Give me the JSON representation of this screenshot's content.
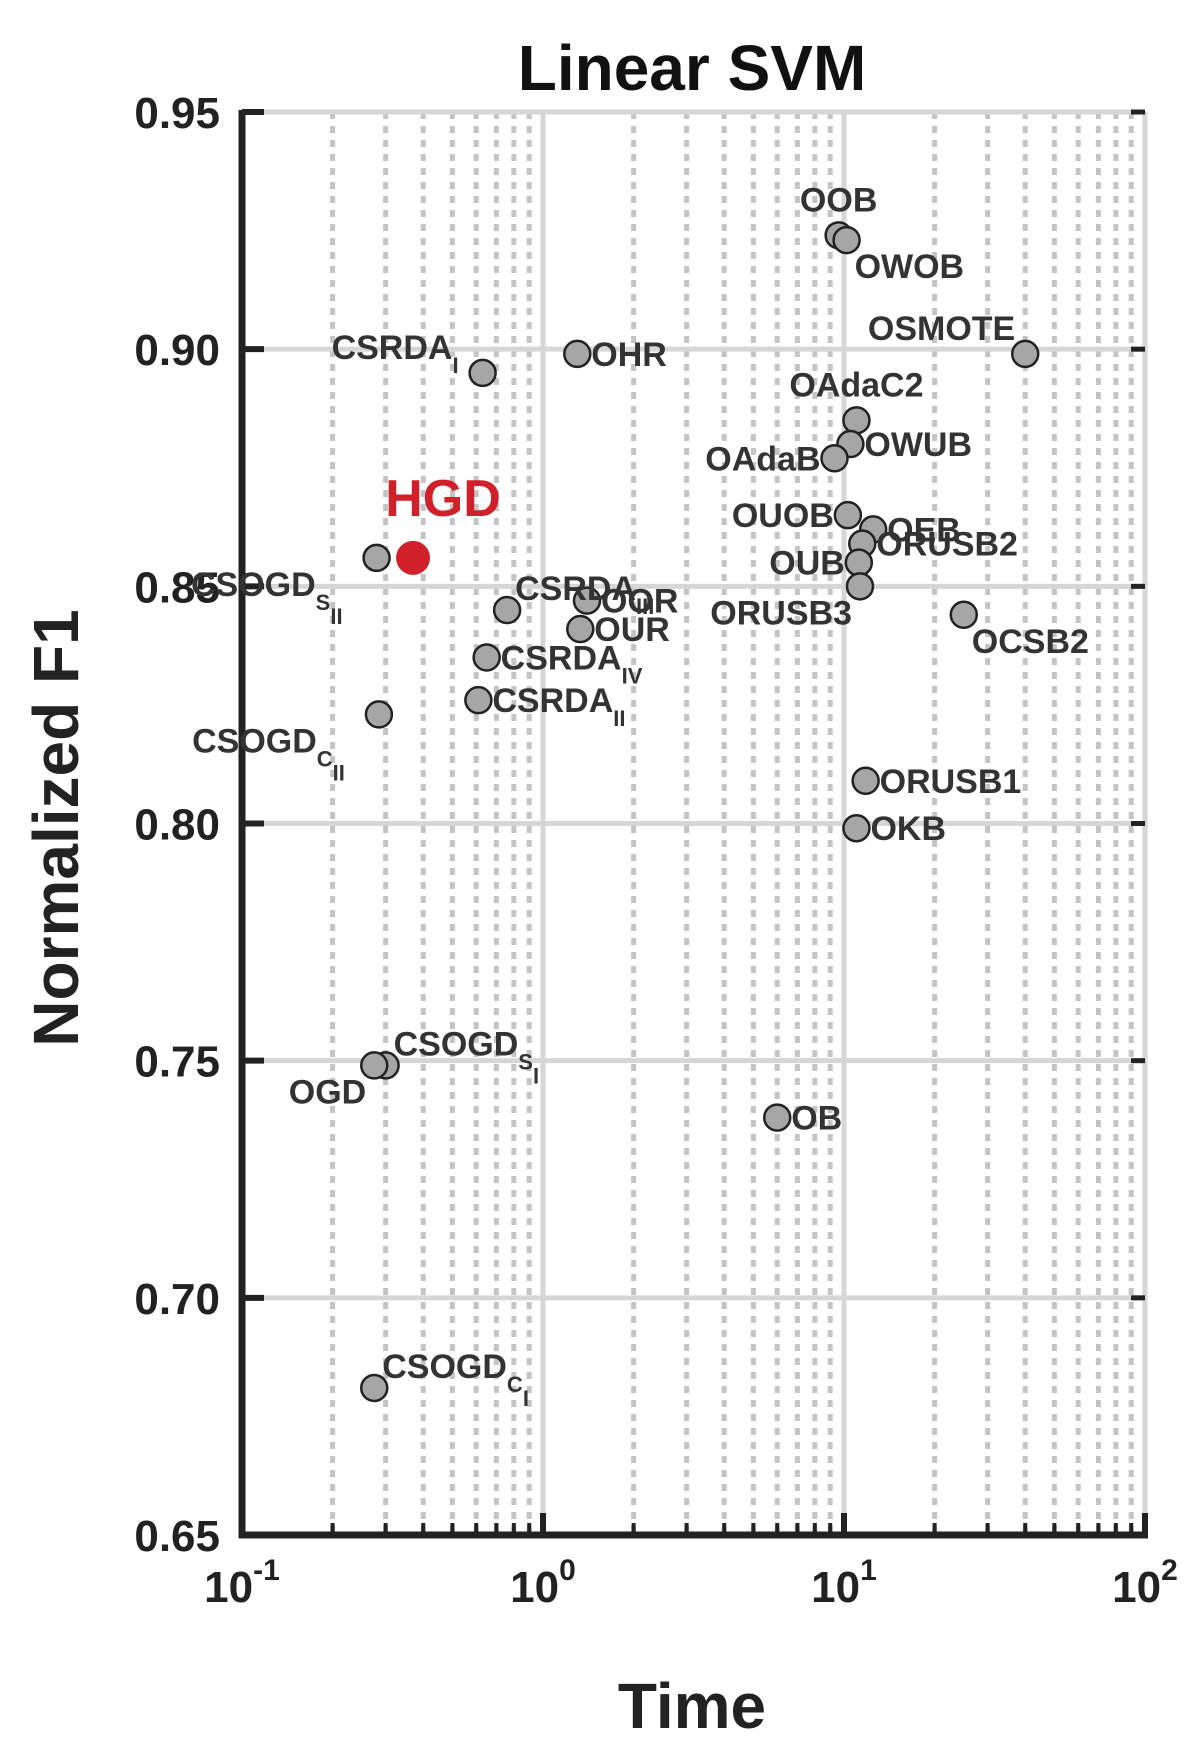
{
  "chart_data": {
    "type": "scatter",
    "title": "Linear SVM",
    "xlabel": "Time",
    "ylabel": "Normalized F1",
    "xscale": "log",
    "xlim": [
      0.1,
      100
    ],
    "ylim": [
      0.65,
      0.95
    ],
    "grid": true,
    "minor_grid": true,
    "yticks": [
      "0.65",
      "0.70",
      "0.75",
      "0.80",
      "0.85",
      "0.90",
      "0.95"
    ],
    "xticks": [
      {
        "base": "10",
        "exp": "-1"
      },
      {
        "base": "10",
        "exp": "0"
      },
      {
        "base": "10",
        "exp": "1"
      },
      {
        "base": "10",
        "exp": "2"
      }
    ],
    "highlight_color": "#d0202a",
    "marker_color": "#a6a6a6",
    "points": [
      {
        "label": "HGD",
        "sub": "",
        "x": 0.37,
        "y": 0.856,
        "highlight": true,
        "lp": "above"
      },
      {
        "label": "OOB",
        "sub": "",
        "x": 9.6,
        "y": 0.924,
        "lp": "above"
      },
      {
        "label": "OWOB",
        "sub": "",
        "x": 10.2,
        "y": 0.923,
        "lp": "below-right"
      },
      {
        "label": "OSMOTE",
        "sub": "",
        "x": 40.0,
        "y": 0.899,
        "lp": "above-left"
      },
      {
        "label": "CSRDA",
        "sub": "I",
        "x": 0.63,
        "y": 0.895,
        "lp": "above-left"
      },
      {
        "label": "OHR",
        "sub": "",
        "x": 1.3,
        "y": 0.899,
        "lp": "right"
      },
      {
        "label": "OAdaC2",
        "sub": "",
        "x": 11.0,
        "y": 0.885,
        "lp": "above"
      },
      {
        "label": "OWUB",
        "sub": "",
        "x": 10.5,
        "y": 0.88,
        "lp": "right"
      },
      {
        "label": "OAdaB",
        "sub": "",
        "x": 9.3,
        "y": 0.877,
        "lp": "left"
      },
      {
        "label": "OUOB",
        "sub": "",
        "x": 10.3,
        "y": 0.865,
        "lp": "left"
      },
      {
        "label": "OEB",
        "sub": "",
        "x": 12.5,
        "y": 0.862,
        "lp": "right"
      },
      {
        "label": "ORUSB2",
        "sub": "",
        "x": 11.5,
        "y": 0.859,
        "lp": "right"
      },
      {
        "label": "OUB",
        "sub": "",
        "x": 11.2,
        "y": 0.855,
        "lp": "left"
      },
      {
        "label": "ORUSB3",
        "sub": "",
        "x": 11.3,
        "y": 0.85,
        "lp": "below-left"
      },
      {
        "label": "OCSB2",
        "sub": "",
        "x": 25.0,
        "y": 0.844,
        "lp": "below-right"
      },
      {
        "label": "CSOGD",
        "sub": "S_II",
        "x": 0.28,
        "y": 0.856,
        "lp": "below-left"
      },
      {
        "label": "CSRDA",
        "sub": "III",
        "x": 0.76,
        "y": 0.845,
        "lp": "above-right"
      },
      {
        "label": "OOR",
        "sub": "",
        "x": 1.4,
        "y": 0.847,
        "lp": "right"
      },
      {
        "label": "OUR",
        "sub": "",
        "x": 1.33,
        "y": 0.841,
        "lp": "right"
      },
      {
        "label": "CSRDA",
        "sub": "IV",
        "x": 0.65,
        "y": 0.835,
        "lp": "right"
      },
      {
        "label": "CSRDA",
        "sub": "II",
        "x": 0.61,
        "y": 0.826,
        "lp": "right"
      },
      {
        "label": "CSOGD",
        "sub": "C_II",
        "x": 0.285,
        "y": 0.823,
        "lp": "below-left"
      },
      {
        "label": "ORUSB1",
        "sub": "",
        "x": 11.8,
        "y": 0.809,
        "lp": "right"
      },
      {
        "label": "OKB",
        "sub": "",
        "x": 11.0,
        "y": 0.799,
        "lp": "right"
      },
      {
        "label": "CSOGD",
        "sub": "S_I",
        "x": 0.3,
        "y": 0.749,
        "lp": "above-right"
      },
      {
        "label": "OGD",
        "sub": "",
        "x": 0.275,
        "y": 0.749,
        "lp": "below-left"
      },
      {
        "label": "OB",
        "sub": "",
        "x": 6.0,
        "y": 0.738,
        "lp": "right"
      },
      {
        "label": "CSOGD",
        "sub": "C_I",
        "x": 0.275,
        "y": 0.681,
        "lp": "above-right"
      }
    ]
  }
}
